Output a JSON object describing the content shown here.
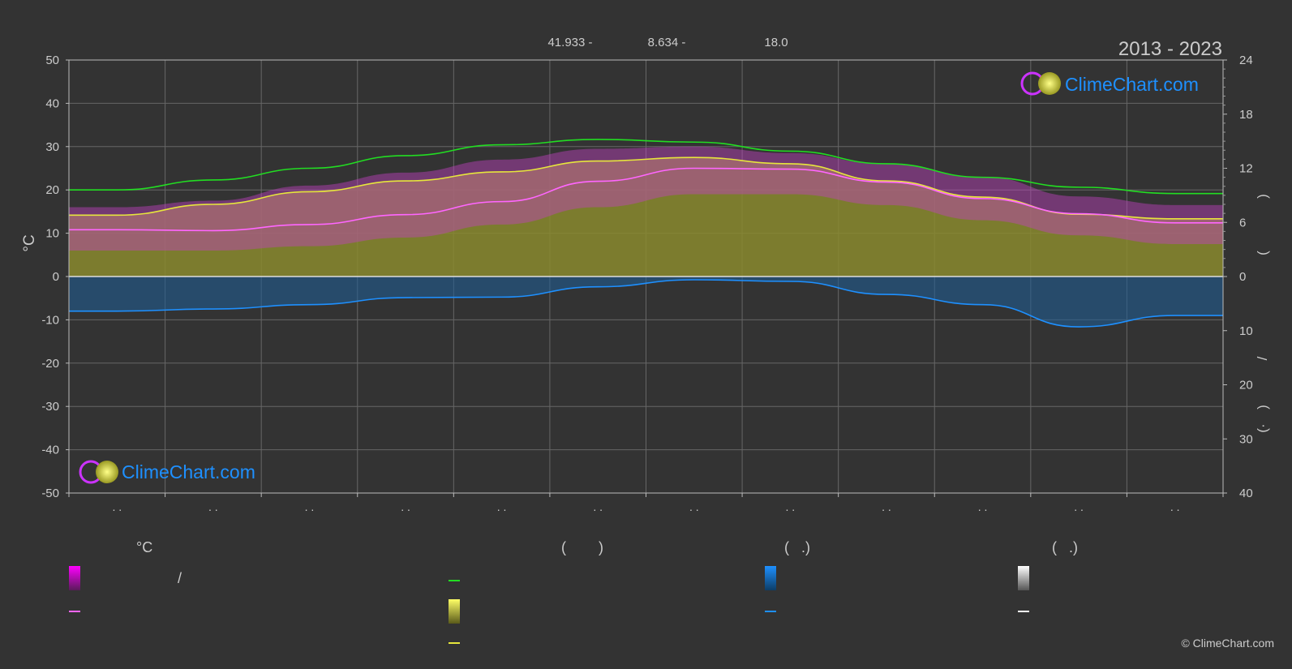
{
  "header": {
    "coord_lat": "41.933 -",
    "coord_lon": "8.634 -",
    "elevation": "18.0",
    "period": "2013 - 2023"
  },
  "brand": {
    "logo_text": "ClimeChart.com",
    "copyright": "© ClimeChart.com"
  },
  "colors": {
    "background": "#333333",
    "grid": "#666666",
    "daylight_green": "#22dd22",
    "sunshine_yellow": "#e6e63c",
    "temp_magenta": "#ff66ff",
    "precip_blue": "#1e90ff",
    "snow_white": "#ffffff",
    "logo_blue": "#1e90ff"
  },
  "legend": {
    "temp_title": "°C",
    "sun_title": "(        )",
    "rain_title": "(   .)",
    "snow_title": "(   .)",
    "slash": "/"
  },
  "chart_data": {
    "type": "area",
    "left_axis": {
      "label": "°C",
      "ylim": [
        -50,
        50
      ],
      "ticks": [
        50,
        40,
        30,
        20,
        10,
        0,
        -10,
        -20,
        -30,
        -40,
        -50
      ]
    },
    "right_axis_top": {
      "ticks": [
        24,
        18,
        12,
        6,
        0
      ],
      "range": [
        0,
        24
      ]
    },
    "right_axis_bottom": {
      "ticks": [
        10,
        20,
        30,
        40
      ],
      "range": [
        0,
        40
      ]
    },
    "right_axis_labels": [
      ")",
      "(",
      "/",
      ")",
      "(·"
    ],
    "grid": true,
    "months": 12,
    "month_tick_labels": [
      ". .",
      ". .",
      ". .",
      ". .",
      ". .",
      ". .",
      ". .",
      ". .",
      ". .",
      ". .",
      ". .",
      ". ."
    ],
    "series": [
      {
        "key": "daylight",
        "color": "#22dd22",
        "axis": "sun_hours",
        "values": [
          9.6,
          10.7,
          12.0,
          13.4,
          14.6,
          15.2,
          14.9,
          13.9,
          12.5,
          11.0,
          9.9,
          9.2
        ]
      },
      {
        "key": "sunshine_mean",
        "color": "#e6e63c",
        "axis": "sun_hours",
        "values": [
          6.8,
          8.0,
          9.4,
          10.6,
          11.6,
          12.8,
          13.2,
          12.5,
          10.6,
          8.8,
          6.9,
          6.4
        ]
      },
      {
        "key": "temp_mean",
        "color": "#ff66ff",
        "axis": "temp",
        "values": [
          10.8,
          10.6,
          12.0,
          14.3,
          17.3,
          22.0,
          25.0,
          24.8,
          21.8,
          18.0,
          14.5,
          12.4
        ]
      },
      {
        "key": "temp_max_band",
        "axis": "temp",
        "values": [
          16.0,
          17.5,
          21.0,
          24.0,
          27.0,
          29.5,
          30.0,
          28.5,
          26.0,
          23.0,
          18.5,
          16.5
        ]
      },
      {
        "key": "temp_min_band",
        "axis": "temp",
        "values": [
          6.0,
          6.0,
          7.0,
          9.0,
          12.0,
          16.0,
          19.0,
          19.0,
          16.5,
          13.0,
          9.5,
          7.5
        ]
      },
      {
        "key": "precip_mean",
        "color": "#1e90ff",
        "axis": "precip_mm",
        "values": [
          6.4,
          6.0,
          5.2,
          3.9,
          3.8,
          1.9,
          0.6,
          0.9,
          3.3,
          5.2,
          9.3,
          7.2
        ]
      }
    ]
  }
}
